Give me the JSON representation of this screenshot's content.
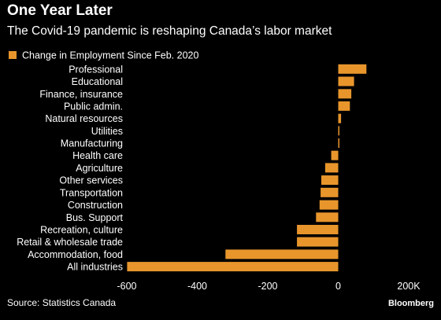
{
  "chart_data": {
    "type": "bar",
    "orientation": "horizontal",
    "title": "One Year Later",
    "subtitle": "The Covid-19 pandemic is reshaping Canada’s labor market",
    "legend": {
      "label": "Change in Employment Since Feb. 2020",
      "placement": "top-left"
    },
    "series": [
      {
        "name": "Change in Employment Since Feb. 2020",
        "color": "#E8962C",
        "values": [
          80,
          45,
          37,
          33,
          8,
          2,
          2,
          -20,
          -37,
          -48,
          -50,
          -53,
          -63,
          -117,
          -117,
          -320,
          -599
        ]
      }
    ],
    "categories": [
      "Professional",
      "Educational",
      "Finance, insurance",
      "Public admin.",
      "Natural resources",
      "Utilities",
      "Manufacturing",
      "Health care",
      "Agriculture",
      "Other services",
      "Transportation",
      "Construction",
      "Bus. Support",
      "Recreation, culture",
      "Retail & wholesale trade",
      "Accommodation, food",
      "All industries"
    ],
    "xlim": [
      -600,
      200
    ],
    "xticks": [
      {
        "value": -600,
        "label": "-600"
      },
      {
        "value": -400,
        "label": "-400"
      },
      {
        "value": -200,
        "label": "-200"
      },
      {
        "value": 0,
        "label": "0"
      },
      {
        "value": 200,
        "label": "200K"
      }
    ],
    "grid": false,
    "xlabel": "",
    "ylabel": ""
  },
  "footer": {
    "source": "Source: Statistics Canada",
    "brand": "Bloomberg"
  }
}
